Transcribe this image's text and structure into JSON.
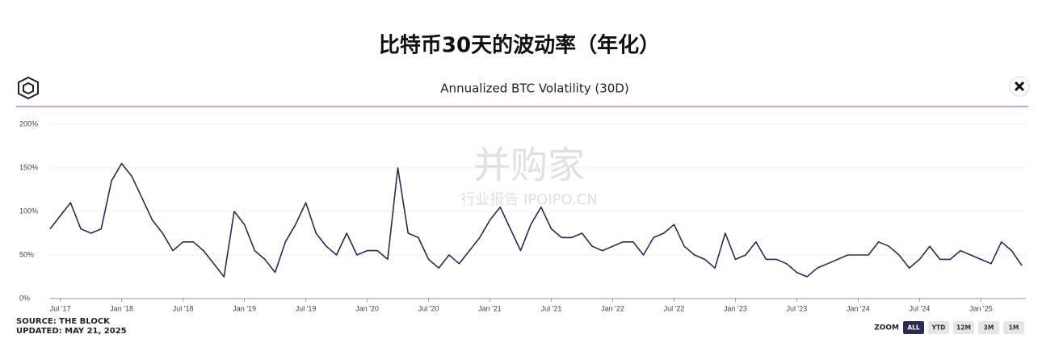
{
  "header": {
    "title": "比特币30天的波动率（年化）"
  },
  "watermark": {
    "brand": "并购家",
    "tagline": "行业报告 IPOIPO.CN"
  },
  "chart_data": {
    "type": "line",
    "title": "Annualized BTC Volatility (30D)",
    "color": "#2b2a55",
    "grid": true,
    "x": [
      "2017-06",
      "2017-07",
      "2017-08",
      "2017-09",
      "2017-10",
      "2017-11",
      "2017-12",
      "2018-01",
      "2018-02",
      "2018-03",
      "2018-04",
      "2018-05",
      "2018-06",
      "2018-07",
      "2018-08",
      "2018-09",
      "2018-10",
      "2018-11",
      "2018-12",
      "2019-01",
      "2019-02",
      "2019-03",
      "2019-04",
      "2019-05",
      "2019-06",
      "2019-07",
      "2019-08",
      "2019-09",
      "2019-10",
      "2019-11",
      "2019-12",
      "2020-01",
      "2020-02",
      "2020-03",
      "2020-04",
      "2020-05",
      "2020-06",
      "2020-07",
      "2020-08",
      "2020-09",
      "2020-10",
      "2020-11",
      "2020-12",
      "2021-01",
      "2021-02",
      "2021-03",
      "2021-04",
      "2021-05",
      "2021-06",
      "2021-07",
      "2021-08",
      "2021-09",
      "2021-10",
      "2021-11",
      "2021-12",
      "2022-01",
      "2022-02",
      "2022-03",
      "2022-04",
      "2022-05",
      "2022-06",
      "2022-07",
      "2022-08",
      "2022-09",
      "2022-10",
      "2022-11",
      "2022-12",
      "2023-01",
      "2023-02",
      "2023-03",
      "2023-04",
      "2023-05",
      "2023-06",
      "2023-07",
      "2023-08",
      "2023-09",
      "2023-10",
      "2023-11",
      "2023-12",
      "2024-01",
      "2024-02",
      "2024-03",
      "2024-04",
      "2024-05",
      "2024-06",
      "2024-07",
      "2024-08",
      "2024-09",
      "2024-10",
      "2024-11",
      "2024-12",
      "2025-01",
      "2025-02",
      "2025-03",
      "2025-04",
      "2025-05"
    ],
    "values": [
      80,
      95,
      110,
      80,
      75,
      80,
      135,
      155,
      140,
      115,
      90,
      75,
      55,
      65,
      65,
      55,
      40,
      25,
      100,
      85,
      55,
      45,
      30,
      65,
      85,
      110,
      75,
      60,
      50,
      75,
      50,
      55,
      55,
      45,
      150,
      75,
      70,
      45,
      35,
      50,
      40,
      55,
      70,
      90,
      105,
      80,
      55,
      85,
      105,
      80,
      70,
      70,
      75,
      60,
      55,
      60,
      65,
      65,
      50,
      70,
      75,
      85,
      60,
      50,
      45,
      35,
      75,
      45,
      50,
      65,
      45,
      45,
      40,
      30,
      25,
      35,
      40,
      45,
      50,
      50,
      50,
      65,
      60,
      50,
      35,
      45,
      60,
      45,
      45,
      55,
      50,
      45,
      40,
      65,
      55,
      38
    ],
    "xlim": [
      "2017-06",
      "2025-05"
    ],
    "xticks": [
      {
        "value": "2017-07",
        "label": "Jul '17"
      },
      {
        "value": "2018-01",
        "label": "Jan '18"
      },
      {
        "value": "2018-07",
        "label": "Jul '18"
      },
      {
        "value": "2019-01",
        "label": "Jan '19"
      },
      {
        "value": "2019-07",
        "label": "Jul '19"
      },
      {
        "value": "2020-01",
        "label": "Jan '20"
      },
      {
        "value": "2020-07",
        "label": "Jul '20"
      },
      {
        "value": "2021-01",
        "label": "Jan '21"
      },
      {
        "value": "2021-07",
        "label": "Jul '21"
      },
      {
        "value": "2022-01",
        "label": "Jan '22"
      },
      {
        "value": "2022-07",
        "label": "Jul '22"
      },
      {
        "value": "2023-01",
        "label": "Jan '23"
      },
      {
        "value": "2023-07",
        "label": "Jul '23"
      },
      {
        "value": "2024-01",
        "label": "Jan '24"
      },
      {
        "value": "2024-07",
        "label": "Jul '24"
      },
      {
        "value": "2025-01",
        "label": "Jan '25"
      }
    ],
    "ylim": [
      0,
      200
    ],
    "yticks": [
      {
        "value": 0,
        "label": "0%"
      },
      {
        "value": 50,
        "label": "50%"
      },
      {
        "value": 100,
        "label": "100%"
      },
      {
        "value": 150,
        "label": "150%"
      },
      {
        "value": 200,
        "label": "200%"
      }
    ]
  },
  "footer": {
    "source": "SOURCE: THE BLOCK",
    "updated": "UPDATED: MAY 21, 2025"
  },
  "zoom": {
    "label": "ZOOM",
    "buttons": [
      "ALL",
      "YTD",
      "12M",
      "3M",
      "1M"
    ]
  }
}
